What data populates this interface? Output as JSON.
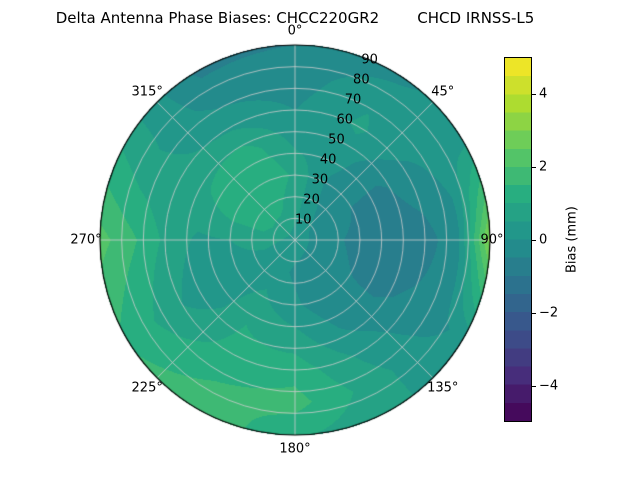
{
  "title": "Delta Antenna Phase Biases: CHCC220GR2        CHCD IRNSS-L5",
  "chart_data": {
    "type": "heatmap",
    "subtype": "polar_filled_contour",
    "title": "Delta Antenna Phase Biases: CHCC220GR2        CHCD IRNSS-L5",
    "station_left": "CHCC220GR2",
    "station_right": "CHCD IRNSS-L5",
    "colormap": "viridis",
    "vmin": -5,
    "vmax": 5,
    "levels_step": 0.5,
    "colormap_stops": [
      "#440154",
      "#472d7b",
      "#3b528b",
      "#2c728e",
      "#21918c",
      "#28ae80",
      "#5ec962",
      "#addc30",
      "#fde725"
    ],
    "grid_color": "rgba(205,205,205,0.9)",
    "outline_color": "#000000",
    "angular_ticks": [
      {
        "angle": 0,
        "label": "0°"
      },
      {
        "angle": 45,
        "label": "45°"
      },
      {
        "angle": 90,
        "label": "90°"
      },
      {
        "angle": 135,
        "label": "135°"
      },
      {
        "angle": 180,
        "label": "180°"
      },
      {
        "angle": 225,
        "label": "225°"
      },
      {
        "angle": 270,
        "label": "270°"
      },
      {
        "angle": 315,
        "label": "315°"
      }
    ],
    "radial_ticks": {
      "values": [
        10,
        20,
        30,
        40,
        50,
        60,
        70,
        80,
        90
      ],
      "label_azimuth_deg": 22.5,
      "max_radius": 90
    },
    "grid": {
      "azimuth_deg": [
        0,
        30,
        60,
        90,
        120,
        150,
        180,
        210,
        240,
        270,
        300,
        330,
        360
      ],
      "radius": [
        0,
        15,
        30,
        45,
        60,
        75,
        90
      ],
      "bias_mm": [
        [
          0.3,
          0.3,
          0.3,
          0.3,
          0.3,
          0.3,
          0.3,
          0.3,
          0.3,
          0.3,
          0.3,
          0.3,
          0.3
        ],
        [
          0.7,
          0.1,
          -0.3,
          -0.4,
          -0.4,
          -0.3,
          -0.1,
          0.2,
          0.3,
          0.8,
          1.2,
          1.1,
          0.7
        ],
        [
          0.9,
          -0.1,
          -0.5,
          -0.6,
          -0.5,
          -0.4,
          0.1,
          0.6,
          0.2,
          0.5,
          1.4,
          1.5,
          0.9
        ],
        [
          0.4,
          0.2,
          -0.6,
          -0.8,
          -0.6,
          -0.1,
          0.7,
          1.0,
          0.1,
          0.4,
          1.0,
          1.3,
          0.4
        ],
        [
          0.0,
          0.6,
          -0.2,
          -0.7,
          -0.4,
          0.4,
          1.3,
          1.2,
          0.5,
          0.9,
          0.6,
          0.4,
          0.0
        ],
        [
          -0.3,
          0.4,
          0.2,
          -0.2,
          -0.2,
          0.7,
          1.7,
          1.5,
          1.0,
          1.6,
          0.6,
          -0.2,
          -0.3
        ],
        [
          -0.5,
          -0.2,
          0.4,
          3.2,
          0.2,
          0.6,
          1.1,
          1.9,
          1.4,
          2.2,
          0.9,
          -0.6,
          -0.5
        ]
      ]
    },
    "colorbar": {
      "label": "Bias (mm)",
      "tick_labels": [
        "4",
        "2",
        "0",
        "−2",
        "−4"
      ],
      "tick_values": [
        4,
        2,
        0,
        -2,
        -4
      ]
    }
  }
}
